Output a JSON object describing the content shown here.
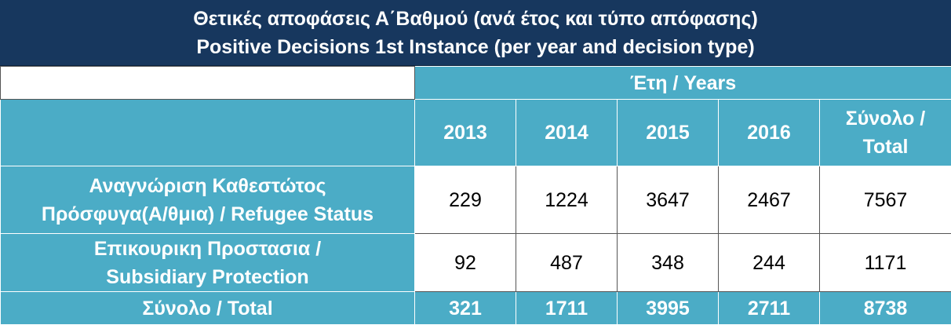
{
  "title": [
    "Θετικές αποφάσεις Α΄Βαθμού (ανά έτος και τύπο απόφασης)",
    "Positive Decisions 1st Instance (per year and decision type)"
  ],
  "header": {
    "years_label": "Έτη / Years",
    "columns": [
      [
        "2013"
      ],
      [
        "2014"
      ],
      [
        "2015"
      ],
      [
        "2016"
      ],
      [
        "Σύνολο /",
        "Total"
      ]
    ]
  },
  "rows": [
    {
      "label": [
        "Αναγνώριση Καθεστώτος",
        "Πρόσφυγα(Α/θμια) / Refugee Status"
      ],
      "values": [
        229,
        1224,
        3647,
        2467,
        7567
      ]
    },
    {
      "label": [
        "Επικουρικη Προστασια /",
        "Subsidiary Protection"
      ],
      "values": [
        92,
        487,
        348,
        244,
        1171
      ]
    }
  ],
  "total": {
    "label": "Σύνολο / Total",
    "values": [
      321,
      1711,
      3995,
      2711,
      8738
    ]
  }
}
